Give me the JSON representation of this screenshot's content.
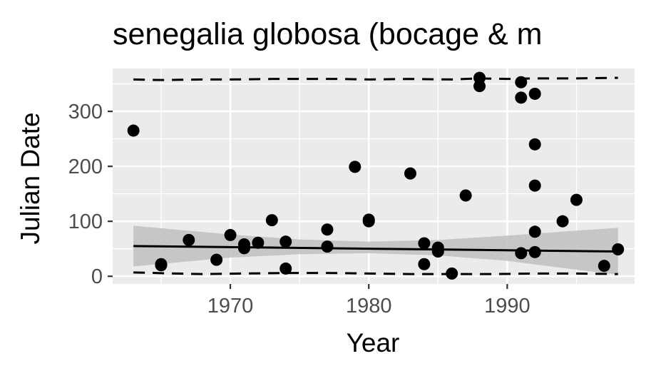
{
  "chart_data": {
    "type": "scatter",
    "title": "senegalia globosa (bocage & m",
    "xlabel": "Year",
    "ylabel": "Julian Date",
    "xlim": [
      1961.5,
      1999.2
    ],
    "ylim": [
      -14,
      378
    ],
    "x_ticks": [
      1970,
      1980,
      1990
    ],
    "y_ticks": [
      0,
      100,
      200,
      300
    ],
    "x_tick_labels": [
      "1970",
      "1980",
      "1990"
    ],
    "y_tick_labels": [
      "0",
      "100",
      "200",
      "300"
    ],
    "grid": true,
    "points": [
      {
        "x": 1963,
        "y": 265
      },
      {
        "x": 1965,
        "y": 22
      },
      {
        "x": 1965,
        "y": 20
      },
      {
        "x": 1967,
        "y": 66
      },
      {
        "x": 1969,
        "y": 30
      },
      {
        "x": 1970,
        "y": 75
      },
      {
        "x": 1971,
        "y": 58
      },
      {
        "x": 1971,
        "y": 51
      },
      {
        "x": 1972,
        "y": 61
      },
      {
        "x": 1973,
        "y": 102
      },
      {
        "x": 1974,
        "y": 63
      },
      {
        "x": 1974,
        "y": 14
      },
      {
        "x": 1977,
        "y": 85
      },
      {
        "x": 1977,
        "y": 54
      },
      {
        "x": 1979,
        "y": 199
      },
      {
        "x": 1980,
        "y": 103
      },
      {
        "x": 1980,
        "y": 100
      },
      {
        "x": 1983,
        "y": 187
      },
      {
        "x": 1984,
        "y": 60
      },
      {
        "x": 1984,
        "y": 22
      },
      {
        "x": 1985,
        "y": 52
      },
      {
        "x": 1985,
        "y": 45
      },
      {
        "x": 1986,
        "y": 5
      },
      {
        "x": 1987,
        "y": 147
      },
      {
        "x": 1988,
        "y": 361
      },
      {
        "x": 1988,
        "y": 346
      },
      {
        "x": 1991,
        "y": 353
      },
      {
        "x": 1991,
        "y": 325
      },
      {
        "x": 1991,
        "y": 42
      },
      {
        "x": 1992,
        "y": 332
      },
      {
        "x": 1992,
        "y": 240
      },
      {
        "x": 1992,
        "y": 165
      },
      {
        "x": 1992,
        "y": 81
      },
      {
        "x": 1992,
        "y": 44
      },
      {
        "x": 1994,
        "y": 100
      },
      {
        "x": 1995,
        "y": 139
      },
      {
        "x": 1997,
        "y": 19
      },
      {
        "x": 1998,
        "y": 49
      }
    ],
    "trend_line": {
      "x": [
        1963,
        1998
      ],
      "y": [
        55,
        45
      ]
    },
    "confidence_band": {
      "x": [
        1963,
        1970,
        1975,
        1980,
        1985,
        1990,
        1995,
        1998
      ],
      "upper": [
        92,
        76,
        67,
        63,
        66,
        74,
        83,
        88
      ],
      "lower": [
        18,
        34,
        40,
        42,
        38,
        28,
        12,
        3
      ]
    },
    "quantile_upper": {
      "x": [
        1963,
        1965,
        1968,
        1970,
        1973,
        1975,
        1978,
        1980,
        1983,
        1986,
        1988,
        1990,
        1992,
        1995,
        1998
      ],
      "y": [
        358,
        357,
        358,
        358,
        359,
        359,
        359,
        358,
        359,
        358,
        360,
        359,
        360,
        360,
        361
      ]
    },
    "quantile_lower": {
      "x": [
        1963,
        1966,
        1968,
        1971,
        1974,
        1977,
        1980,
        1983,
        1986,
        1989,
        1992,
        1995,
        1998
      ],
      "y": [
        7,
        5,
        4,
        5,
        6,
        6,
        5,
        4,
        4,
        4,
        5,
        5,
        4
      ]
    },
    "colors": {
      "panel": "#ebebeb",
      "grid_major": "#ffffff",
      "point": "#000000",
      "band": "#c0c0c0",
      "tick_label": "#4d4d4d",
      "tick_mark": "#333333"
    }
  }
}
